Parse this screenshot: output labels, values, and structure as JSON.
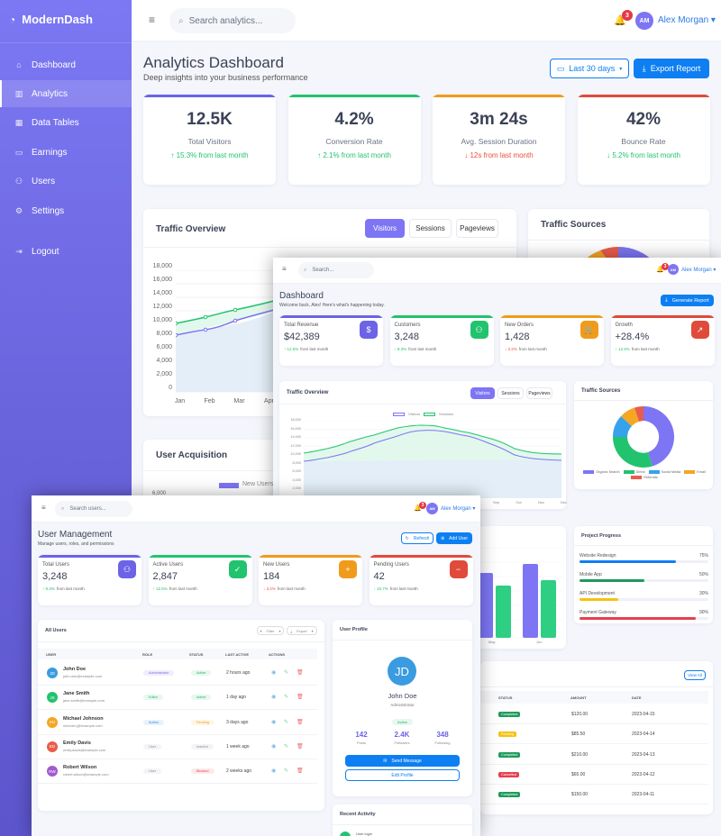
{
  "back_window": {
    "brand": "ModernDash",
    "sidebar": {
      "items": [
        {
          "label": "Dashboard",
          "icon": "home-icon"
        },
        {
          "label": "Analytics",
          "icon": "bar-chart-icon",
          "active": true
        },
        {
          "label": "Data Tables",
          "icon": "table-icon"
        },
        {
          "label": "Earnings",
          "icon": "wallet-icon"
        },
        {
          "label": "Users",
          "icon": "users-icon"
        },
        {
          "label": "Settings",
          "icon": "gear-icon"
        }
      ],
      "logout": "Logout"
    },
    "topbar": {
      "search_placeholder": "Search analytics...",
      "notification_count": "3",
      "user_initials": "AM",
      "user_name": "Alex Morgan"
    },
    "header": {
      "title": "Analytics Dashboard",
      "subtitle": "Deep insights into your business performance",
      "date_range": "Last 30 days",
      "export_label": "Export Report"
    },
    "stats": [
      {
        "value": "12.5K",
        "label": "Total Visitors",
        "change": "↑ 15.3% from last month",
        "trend": "up",
        "color": "#6c63e6"
      },
      {
        "value": "4.2%",
        "label": "Conversion Rate",
        "change": "↑ 2.1% from last month",
        "trend": "up",
        "color": "#22c36e"
      },
      {
        "value": "3m 24s",
        "label": "Avg. Session Duration",
        "change": "↓ 12s from last month",
        "trend": "down-bad",
        "color": "#f09b1b"
      },
      {
        "value": "42%",
        "label": "Bounce Rate",
        "change": "↓ 5.2% from last month",
        "trend": "down-good",
        "color": "#e04a3a"
      }
    ],
    "traffic": {
      "title": "Traffic Overview",
      "tabs": [
        "Visitors",
        "Sessions",
        "Pageviews"
      ],
      "y_ticks": [
        "18,000",
        "16,000",
        "14,000",
        "12,000",
        "10,000",
        "8,000",
        "6,000",
        "4,000",
        "2,000",
        "0"
      ],
      "x_ticks": [
        "Jan",
        "Feb",
        "Mar",
        "Apr"
      ]
    },
    "sources_title": "Traffic Sources",
    "acquisition": {
      "title": "User Acquisition",
      "legend": "New Users",
      "y_top": "6,000"
    }
  },
  "middle_window": {
    "topbar": {
      "search_placeholder": "Search...",
      "notification_count": "3",
      "user_initials": "AM",
      "user_name": "Alex Morgan"
    },
    "header": {
      "title": "Dashboard",
      "subtitle": "Welcome back, Alex! Here's what's happening today.",
      "button": "Generate Report"
    },
    "stats": [
      {
        "label": "Total Revenue",
        "value": "$42,389",
        "change_pct": "12.5%",
        "change_text": "from last month",
        "trend": "up",
        "icon": "dollar-icon",
        "glyph": "$",
        "color": "#6c63e6"
      },
      {
        "label": "Customers",
        "value": "3,248",
        "change_pct": "8.3%",
        "change_text": "from last month",
        "trend": "up",
        "icon": "users-icon",
        "glyph": "⚇",
        "color": "#22c36e"
      },
      {
        "label": "New Orders",
        "value": "1,428",
        "change_pct": "3.2%",
        "change_text": "from last month",
        "trend": "down",
        "icon": "cart-icon",
        "glyph": "🛒",
        "color": "#f09b1b"
      },
      {
        "label": "Growth",
        "value": "+28.4%",
        "change_pct": "12.5%",
        "change_text": "from last month",
        "trend": "up",
        "icon": "trend-up-icon",
        "glyph": "↗",
        "color": "#e04a3a"
      }
    ],
    "traffic": {
      "title": "Traffic Overview",
      "tabs": [
        "Visitors",
        "Sessions",
        "Pageviews"
      ],
      "legend": [
        "Visitors",
        "Sessions"
      ],
      "y_ticks": [
        "18,000",
        "16,000",
        "14,000",
        "12,000",
        "10,000",
        "8,000",
        "6,000",
        "4,000",
        "2,000",
        "0"
      ],
      "x_ticks_visible": [
        "Sep",
        "Oct",
        "Nov",
        "Dec"
      ]
    },
    "sources": {
      "title": "Traffic Sources",
      "legend": [
        "Organic Search",
        "Direct",
        "Social Media",
        "Email",
        "Referrals"
      ]
    },
    "bars": {
      "x_ticks": [
        "May",
        "Jun"
      ]
    },
    "projects": {
      "title": "Project Progress",
      "items": [
        {
          "name": "Website Redesign",
          "pct": "75%",
          "value": 75,
          "color": "#0d7ff2"
        },
        {
          "name": "Mobile App",
          "pct": "50%",
          "value": 50,
          "color": "#1e9a5c"
        },
        {
          "name": "API Development",
          "pct": "30%",
          "value": 30,
          "color": "#f5c211"
        },
        {
          "name": "Payment Gateway",
          "pct": "90%",
          "value": 90,
          "color": "#e5404f"
        }
      ]
    },
    "orders": {
      "view_all": "View All",
      "columns": [
        "STATUS",
        "AMOUNT",
        "DATE"
      ],
      "rows": [
        {
          "status": "Completed",
          "amount": "$120.00",
          "date": "2023-04-15",
          "color": "#1e9a5c"
        },
        {
          "status": "Pending",
          "amount": "$85.50",
          "date": "2023-04-14",
          "color": "#f5c211"
        },
        {
          "status": "Completed",
          "amount": "$210.00",
          "date": "2023-04-13",
          "color": "#1e9a5c"
        },
        {
          "status": "Cancelled",
          "amount": "$65.00",
          "date": "2023-04-12",
          "color": "#e5404f"
        },
        {
          "status": "Completed",
          "amount": "$150.00",
          "date": "2023-04-11",
          "color": "#1e9a5c"
        }
      ]
    }
  },
  "front_window": {
    "topbar": {
      "search_placeholder": "Search users...",
      "notification_count": "3",
      "user_initials": "AM",
      "user_name": "Alex Morgan"
    },
    "header": {
      "title": "User Management",
      "subtitle": "Manage users, roles, and permissions",
      "refresh": "Refresh",
      "add_user": "Add User"
    },
    "stats": [
      {
        "label": "Total Users",
        "value": "3,248",
        "change_pct": "8.3%",
        "change_text": "from last month",
        "trend": "up",
        "icon": "users-icon",
        "glyph": "⚇",
        "color": "#6c63e6"
      },
      {
        "label": "Active Users",
        "value": "2,847",
        "change_pct": "12.5%",
        "change_text": "from last month",
        "trend": "up",
        "icon": "user-check-icon",
        "glyph": "✓",
        "color": "#22c36e"
      },
      {
        "label": "New Users",
        "value": "184",
        "change_pct": "3.2%",
        "change_text": "from last month",
        "trend": "down",
        "icon": "user-plus-icon",
        "glyph": "+",
        "color": "#f09b1b"
      },
      {
        "label": "Pending Users",
        "value": "42",
        "change_pct": "15.7%",
        "change_text": "from last month",
        "trend": "down-good",
        "icon": "user-minus-icon",
        "glyph": "−",
        "color": "#e04a3a"
      }
    ],
    "users_table": {
      "title": "All Users",
      "filter": "Filter",
      "export": "Export",
      "columns": [
        "USER",
        "ROLE",
        "STATUS",
        "LAST ACTIVE",
        "ACTIONS"
      ],
      "rows": [
        {
          "initials": "JD",
          "name": "John Doe",
          "email": "john.doe@example.com",
          "role": "Administrator",
          "status": "Active",
          "last": "2 hours ago",
          "avatar": "#3a9be0",
          "role_bg": "#efeefe",
          "role_fg": "#7a6ff0",
          "st_bg": "#e7f8ee",
          "st_fg": "#22b360"
        },
        {
          "initials": "JS",
          "name": "Jane Smith",
          "email": "jane.smith@example.com",
          "role": "Editor",
          "status": "Active",
          "last": "1 day ago",
          "avatar": "#22c36e",
          "role_bg": "#e7f8ee",
          "role_fg": "#22b360",
          "st_bg": "#e7f8ee",
          "st_fg": "#22b360"
        },
        {
          "initials": "MJ",
          "name": "Michael Johnson",
          "email": "michael.j@example.com",
          "role": "Author",
          "status": "Pending",
          "last": "3 days ago",
          "avatar": "#f5a623",
          "role_bg": "#e8f2fd",
          "role_fg": "#3a8be0",
          "st_bg": "#fef6e4",
          "st_fg": "#f0a020"
        },
        {
          "initials": "ED",
          "name": "Emily Davis",
          "email": "emily.davis@example.com",
          "role": "User",
          "status": "Inactive",
          "last": "1 week ago",
          "avatar": "#e95c4b",
          "role_bg": "#f3f4f6",
          "role_fg": "#8a8f9c",
          "st_bg": "#f3f4f6",
          "st_fg": "#8a8f9c"
        },
        {
          "initials": "RW",
          "name": "Robert Wilson",
          "email": "robert.wilson@example.com",
          "role": "User",
          "status": "Blocked",
          "last": "2 weeks ago",
          "avatar": "#a05bd0",
          "role_bg": "#f3f4f6",
          "role_fg": "#8a8f9c",
          "st_bg": "#fdeaea",
          "st_fg": "#e5404f"
        }
      ]
    },
    "profile": {
      "title": "User Profile",
      "initials": "JD",
      "name": "John Doe",
      "role": "Administrator",
      "status": "Active",
      "stats": [
        {
          "value": "142",
          "label": "Posts"
        },
        {
          "value": "2.4K",
          "label": "Followers"
        },
        {
          "value": "348",
          "label": "Following"
        }
      ],
      "send_message": "Send Message",
      "edit_profile": "Edit Profile"
    },
    "activity": {
      "title": "Recent Activity",
      "first_item": "User login"
    }
  }
}
